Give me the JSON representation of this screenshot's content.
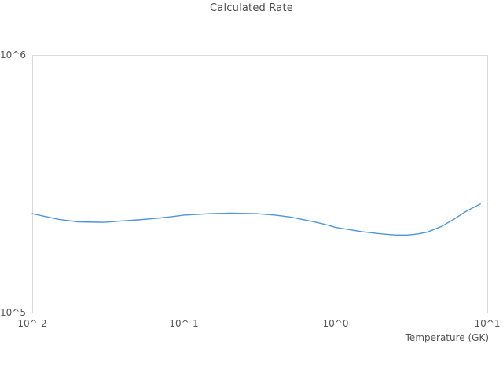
{
  "chart_data": {
    "type": "line",
    "title": "Calculated Rate",
    "xlabel": "Temperature (GK)",
    "ylabel": "",
    "x_scale": "log",
    "y_scale": "log",
    "xlim": [
      0.01,
      10
    ],
    "ylim": [
      100000,
      1000000
    ],
    "grid": false,
    "legend": false,
    "line_color": "#4e96d9",
    "border_color": "#d9d9d9",
    "text_color": "#555555",
    "x_ticks": [
      {
        "value": 0.01,
        "label": "10^-2"
      },
      {
        "value": 0.1,
        "label": "10^-1"
      },
      {
        "value": 1,
        "label": "10^0"
      },
      {
        "value": 10,
        "label": "10^1"
      }
    ],
    "y_ticks": [
      {
        "value": 100000,
        "label": "10^5"
      },
      {
        "value": 1000000,
        "label": "10^6"
      }
    ],
    "series": [
      {
        "name": "Calculated Rate",
        "x": [
          0.01,
          0.015,
          0.02,
          0.03,
          0.04,
          0.05,
          0.06,
          0.07,
          0.08,
          0.09,
          0.1,
          0.15,
          0.2,
          0.3,
          0.4,
          0.5,
          0.6,
          0.7,
          0.8,
          0.9,
          1.0,
          1.5,
          2.0,
          2.5,
          3.0,
          3.5,
          4.0,
          5.0,
          6.0,
          7.0,
          8.0,
          9.0
        ],
        "y": [
          242000,
          230000,
          225000,
          224000,
          227000,
          229000,
          231000,
          233000,
          235000,
          237000,
          239000,
          242000,
          243000,
          242000,
          239000,
          235000,
          230000,
          226000,
          222000,
          218000,
          214000,
          206000,
          202000,
          200000,
          200000,
          202000,
          205000,
          216000,
          230000,
          244000,
          255000,
          264000
        ]
      }
    ]
  }
}
